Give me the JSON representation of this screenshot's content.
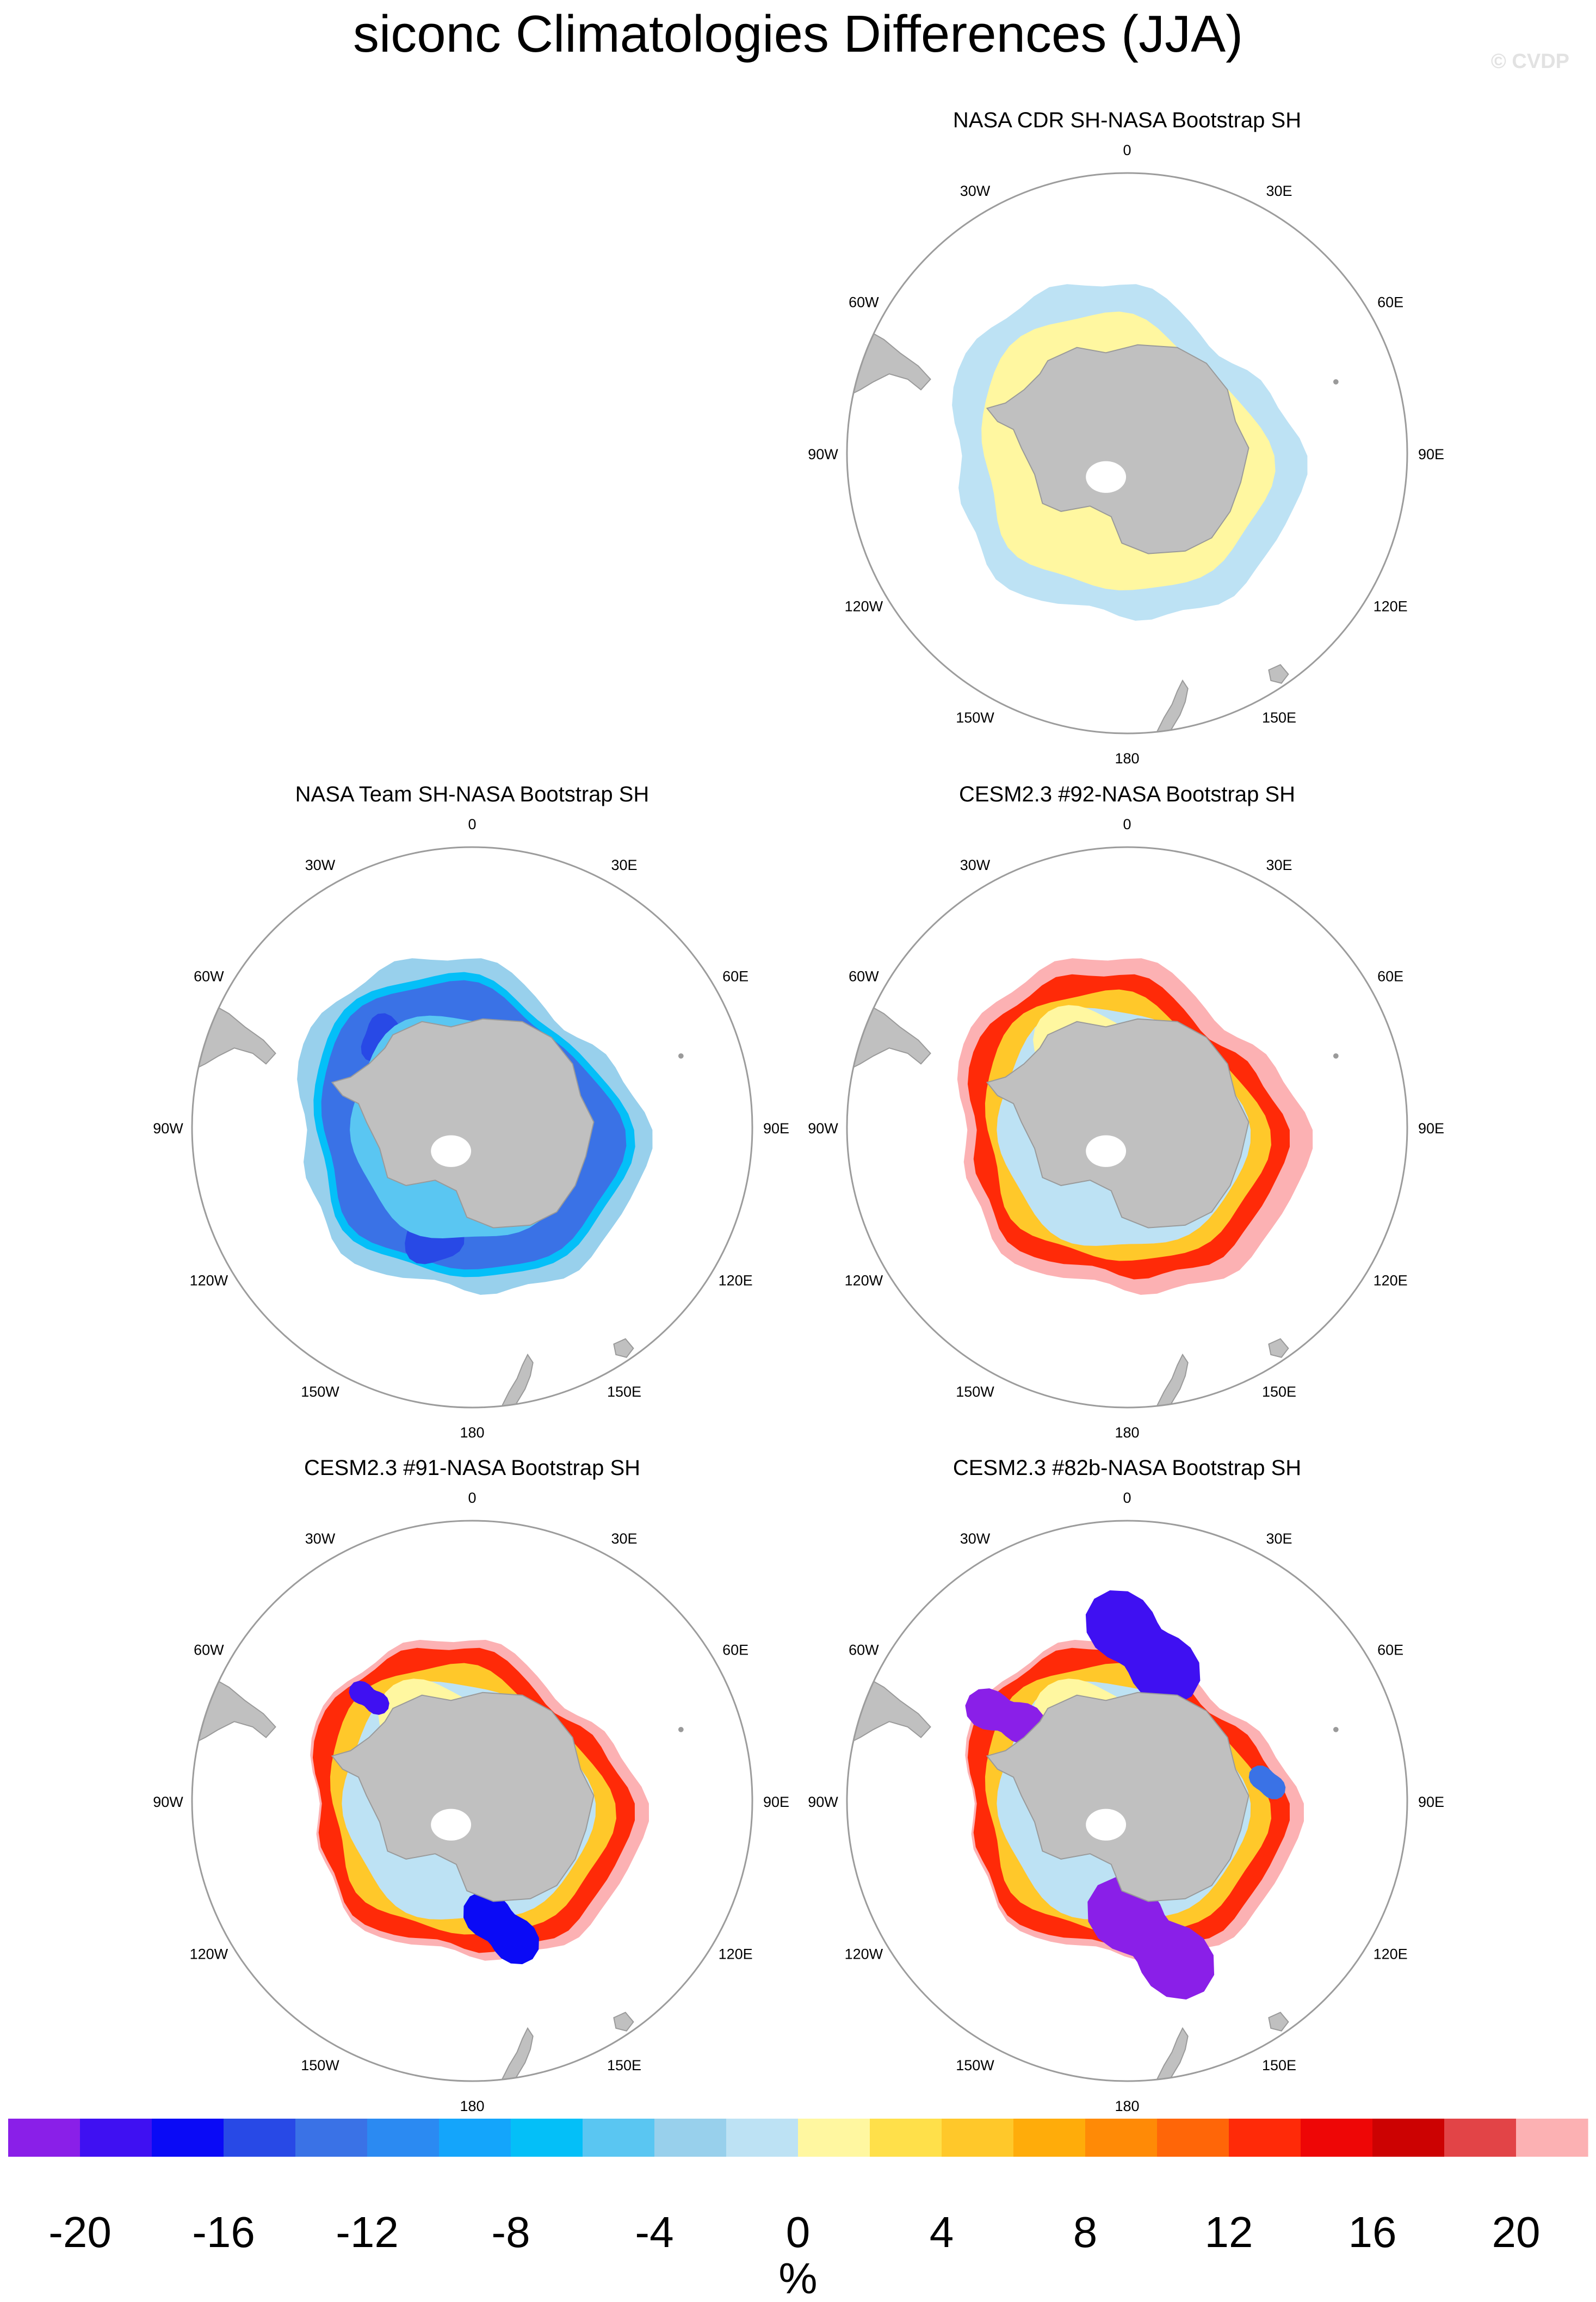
{
  "figure": {
    "title": "siconc Climatologies Differences (JJA)",
    "watermark": "© CVDP"
  },
  "chart_data": {
    "type": "polar-map-panels",
    "variable": "siconc",
    "season": "JJA",
    "hemisphere": "SH",
    "panels": [
      {
        "id": "cdr",
        "title": "NASA CDR SH-NASA Bootstrap SH",
        "row": 1,
        "col": 2,
        "pattern": "cdr"
      },
      {
        "id": "team",
        "title": "NASA Team SH-NASA Bootstrap SH",
        "row": 2,
        "col": 1,
        "pattern": "team"
      },
      {
        "id": "m92",
        "title": "CESM2.3 #92-NASA Bootstrap SH",
        "row": 2,
        "col": 2,
        "pattern": "model92"
      },
      {
        "id": "m91",
        "title": "CESM2.3 #91-NASA Bootstrap SH",
        "row": 3,
        "col": 1,
        "pattern": "model91"
      },
      {
        "id": "m82b",
        "title": "CESM2.3 #82b-NASA Bootstrap SH",
        "row": 3,
        "col": 2,
        "pattern": "model82b"
      }
    ],
    "longitude_labels": [
      "0",
      "30E",
      "60E",
      "90E",
      "120E",
      "150E",
      "180",
      "150W",
      "120W",
      "90W",
      "60W",
      "30W"
    ],
    "colorbar": {
      "unit": "%",
      "levels": [
        -20,
        -18,
        -16,
        -14,
        -12,
        -10,
        -8,
        -6,
        -4,
        -2,
        0,
        2,
        4,
        6,
        8,
        10,
        12,
        14,
        16,
        18,
        20
      ],
      "tick_labels": [
        "-20",
        "-16",
        "-12",
        "-8",
        "-4",
        "0",
        "4",
        "8",
        "12",
        "16",
        "20"
      ],
      "colors": [
        "#8a1fe8",
        "#3f10f2",
        "#0a0af6",
        "#2849e6",
        "#3a72e6",
        "#2b8af2",
        "#14a5fb",
        "#04bff8",
        "#5ac6f2",
        "#98d0ec",
        "#bde2f4",
        "#fff7a0",
        "#ffe04a",
        "#ffc82a",
        "#ffac0a",
        "#ff8a06",
        "#ff6608",
        "#ff2a08",
        "#ee0606",
        "#cc0202",
        "#e24447",
        "#fcb1b3"
      ]
    }
  }
}
